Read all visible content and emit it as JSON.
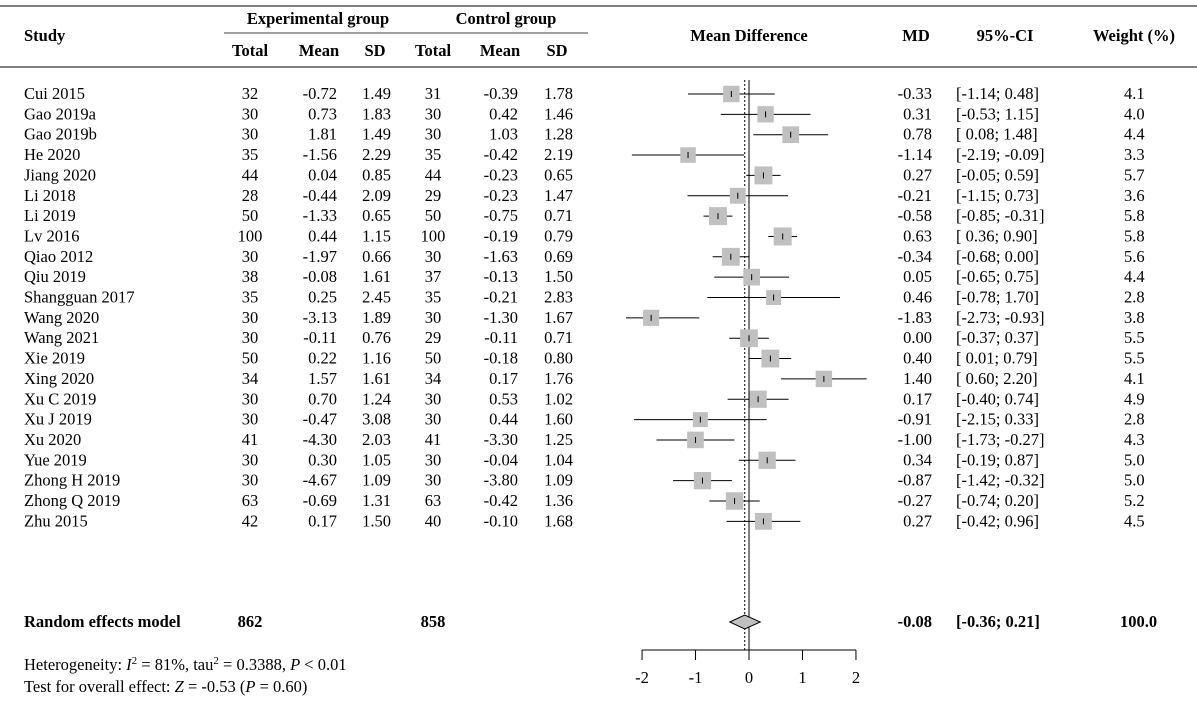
{
  "chart_data": {
    "type": "forest",
    "headers": {
      "study": "Study",
      "exp_group": "Experimental group",
      "ctrl_group": "Control group",
      "total": "Total",
      "mean": "Mean",
      "sd": "SD",
      "plot": "Mean Difference",
      "md": "MD",
      "ci": "95%-CI",
      "weight": "Weight (%)"
    },
    "studies": [
      {
        "study": "Cui 2015",
        "e_total": "32",
        "e_mean": "-0.72",
        "e_sd": "1.49",
        "c_total": "31",
        "c_mean": "-0.39",
        "c_sd": "1.78",
        "md": -0.33,
        "lo": -1.14,
        "hi": 0.48,
        "md_text": "-0.33",
        "ci_text": "[-1.14; 0.48]",
        "weight": 4.1,
        "weight_text": "4.1"
      },
      {
        "study": "Gao 2019a",
        "e_total": "30",
        "e_mean": "0.73",
        "e_sd": "1.83",
        "c_total": "30",
        "c_mean": "0.42",
        "c_sd": "1.46",
        "md": 0.31,
        "lo": -0.53,
        "hi": 1.15,
        "md_text": "0.31",
        "ci_text": "[-0.53; 1.15]",
        "weight": 4.0,
        "weight_text": "4.0"
      },
      {
        "study": "Gao 2019b",
        "e_total": "30",
        "e_mean": "1.81",
        "e_sd": "1.49",
        "c_total": "30",
        "c_mean": "1.03",
        "c_sd": "1.28",
        "md": 0.78,
        "lo": 0.08,
        "hi": 1.48,
        "md_text": "0.78",
        "ci_text": "[ 0.08; 1.48]",
        "weight": 4.4,
        "weight_text": "4.4"
      },
      {
        "study": "He 2020",
        "e_total": "35",
        "e_mean": "-1.56",
        "e_sd": "2.29",
        "c_total": "35",
        "c_mean": "-0.42",
        "c_sd": "2.19",
        "md": -1.14,
        "lo": -2.19,
        "hi": -0.09,
        "md_text": "-1.14",
        "ci_text": "[-2.19; -0.09]",
        "weight": 3.3,
        "weight_text": "3.3"
      },
      {
        "study": "Jiang 2020",
        "e_total": "44",
        "e_mean": "0.04",
        "e_sd": "0.85",
        "c_total": "44",
        "c_mean": "-0.23",
        "c_sd": "0.65",
        "md": 0.27,
        "lo": -0.05,
        "hi": 0.59,
        "md_text": "0.27",
        "ci_text": "[-0.05; 0.59]",
        "weight": 5.7,
        "weight_text": "5.7"
      },
      {
        "study": "Li 2018",
        "e_total": "28",
        "e_mean": "-0.44",
        "e_sd": "2.09",
        "c_total": "29",
        "c_mean": "-0.23",
        "c_sd": "1.47",
        "md": -0.21,
        "lo": -1.15,
        "hi": 0.73,
        "md_text": "-0.21",
        "ci_text": "[-1.15; 0.73]",
        "weight": 3.6,
        "weight_text": "3.6"
      },
      {
        "study": "Li 2019",
        "e_total": "50",
        "e_mean": "-1.33",
        "e_sd": "0.65",
        "c_total": "50",
        "c_mean": "-0.75",
        "c_sd": "0.71",
        "md": -0.58,
        "lo": -0.85,
        "hi": -0.31,
        "md_text": "-0.58",
        "ci_text": "[-0.85; -0.31]",
        "weight": 5.8,
        "weight_text": "5.8"
      },
      {
        "study": "Lv 2016",
        "e_total": "100",
        "e_mean": "0.44",
        "e_sd": "1.15",
        "c_total": "100",
        "c_mean": "-0.19",
        "c_sd": "0.79",
        "md": 0.63,
        "lo": 0.36,
        "hi": 0.9,
        "md_text": "0.63",
        "ci_text": "[ 0.36; 0.90]",
        "weight": 5.8,
        "weight_text": "5.8"
      },
      {
        "study": "Qiao 2012",
        "e_total": "30",
        "e_mean": "-1.97",
        "e_sd": "0.66",
        "c_total": "30",
        "c_mean": "-1.63",
        "c_sd": "0.69",
        "md": -0.34,
        "lo": -0.68,
        "hi": 0.0,
        "md_text": "-0.34",
        "ci_text": "[-0.68; 0.00]",
        "weight": 5.6,
        "weight_text": "5.6"
      },
      {
        "study": "Qiu 2019",
        "e_total": "38",
        "e_mean": "-0.08",
        "e_sd": "1.61",
        "c_total": "37",
        "c_mean": "-0.13",
        "c_sd": "1.50",
        "md": 0.05,
        "lo": -0.65,
        "hi": 0.75,
        "md_text": "0.05",
        "ci_text": "[-0.65; 0.75]",
        "weight": 4.4,
        "weight_text": "4.4"
      },
      {
        "study": "Shangguan 2017",
        "e_total": "35",
        "e_mean": "0.25",
        "e_sd": "2.45",
        "c_total": "35",
        "c_mean": "-0.21",
        "c_sd": "2.83",
        "md": 0.46,
        "lo": -0.78,
        "hi": 1.7,
        "md_text": "0.46",
        "ci_text": "[-0.78; 1.70]",
        "weight": 2.8,
        "weight_text": "2.8"
      },
      {
        "study": "Wang 2020",
        "e_total": "30",
        "e_mean": "-3.13",
        "e_sd": "1.89",
        "c_total": "30",
        "c_mean": "-1.30",
        "c_sd": "1.67",
        "md": -1.83,
        "lo": -2.73,
        "hi": -0.93,
        "md_text": "-1.83",
        "ci_text": "[-2.73; -0.93]",
        "weight": 3.8,
        "weight_text": "3.8"
      },
      {
        "study": "Wang 2021",
        "e_total": "30",
        "e_mean": "-0.11",
        "e_sd": "0.76",
        "c_total": "29",
        "c_mean": "-0.11",
        "c_sd": "0.71",
        "md": 0.0,
        "lo": -0.37,
        "hi": 0.37,
        "md_text": "0.00",
        "ci_text": "[-0.37; 0.37]",
        "weight": 5.5,
        "weight_text": "5.5"
      },
      {
        "study": "Xie 2019",
        "e_total": "50",
        "e_mean": "0.22",
        "e_sd": "1.16",
        "c_total": "50",
        "c_mean": "-0.18",
        "c_sd": "0.80",
        "md": 0.4,
        "lo": 0.01,
        "hi": 0.79,
        "md_text": "0.40",
        "ci_text": "[ 0.01; 0.79]",
        "weight": 5.5,
        "weight_text": "5.5"
      },
      {
        "study": "Xing 2020",
        "e_total": "34",
        "e_mean": "1.57",
        "e_sd": "1.61",
        "c_total": "34",
        "c_mean": "0.17",
        "c_sd": "1.76",
        "md": 1.4,
        "lo": 0.6,
        "hi": 2.2,
        "md_text": "1.40",
        "ci_text": "[ 0.60; 2.20]",
        "weight": 4.1,
        "weight_text": "4.1"
      },
      {
        "study": "Xu C 2019",
        "e_total": "30",
        "e_mean": "0.70",
        "e_sd": "1.24",
        "c_total": "30",
        "c_mean": "0.53",
        "c_sd": "1.02",
        "md": 0.17,
        "lo": -0.4,
        "hi": 0.74,
        "md_text": "0.17",
        "ci_text": "[-0.40; 0.74]",
        "weight": 4.9,
        "weight_text": "4.9"
      },
      {
        "study": "Xu J 2019",
        "e_total": "30",
        "e_mean": "-0.47",
        "e_sd": "3.08",
        "c_total": "30",
        "c_mean": "0.44",
        "c_sd": "1.60",
        "md": -0.91,
        "lo": -2.15,
        "hi": 0.33,
        "md_text": "-0.91",
        "ci_text": "[-2.15; 0.33]",
        "weight": 2.8,
        "weight_text": "2.8"
      },
      {
        "study": "Xu 2020",
        "e_total": "41",
        "e_mean": "-4.30",
        "e_sd": "2.03",
        "c_total": "41",
        "c_mean": "-3.30",
        "c_sd": "1.25",
        "md": -1.0,
        "lo": -1.73,
        "hi": -0.27,
        "md_text": "-1.00",
        "ci_text": "[-1.73; -0.27]",
        "weight": 4.3,
        "weight_text": "4.3"
      },
      {
        "study": "Yue 2019",
        "e_total": "30",
        "e_mean": "0.30",
        "e_sd": "1.05",
        "c_total": "30",
        "c_mean": "-0.04",
        "c_sd": "1.04",
        "md": 0.34,
        "lo": -0.19,
        "hi": 0.87,
        "md_text": "0.34",
        "ci_text": "[-0.19; 0.87]",
        "weight": 5.0,
        "weight_text": "5.0"
      },
      {
        "study": "Zhong H 2019",
        "e_total": "30",
        "e_mean": "-4.67",
        "e_sd": "1.09",
        "c_total": "30",
        "c_mean": "-3.80",
        "c_sd": "1.09",
        "md": -0.87,
        "lo": -1.42,
        "hi": -0.32,
        "md_text": "-0.87",
        "ci_text": "[-1.42; -0.32]",
        "weight": 5.0,
        "weight_text": "5.0"
      },
      {
        "study": "Zhong Q 2019",
        "e_total": "63",
        "e_mean": "-0.69",
        "e_sd": "1.31",
        "c_total": "63",
        "c_mean": "-0.42",
        "c_sd": "1.36",
        "md": -0.27,
        "lo": -0.74,
        "hi": 0.2,
        "md_text": "-0.27",
        "ci_text": "[-0.74; 0.20]",
        "weight": 5.2,
        "weight_text": "5.2"
      },
      {
        "study": "Zhu 2015",
        "e_total": "42",
        "e_mean": "0.17",
        "e_sd": "1.50",
        "c_total": "40",
        "c_mean": "-0.10",
        "c_sd": "1.68",
        "md": 0.27,
        "lo": -0.42,
        "hi": 0.96,
        "md_text": "0.27",
        "ci_text": "[-0.42; 0.96]",
        "weight": 4.5,
        "weight_text": "4.5"
      }
    ],
    "overall": {
      "label": "Random effects model",
      "e_total": "862",
      "c_total": "858",
      "md": -0.08,
      "lo": -0.36,
      "hi": 0.21,
      "md_text": "-0.08",
      "ci_text": "[-0.36; 0.21]",
      "weight_text": "100.0"
    },
    "heterogeneity": {
      "prefix": "Heterogeneity: ",
      "i2_symbol": "I",
      "i2_sup": "2",
      "i2_value": " = 81%, tau",
      "tau_sup": "2",
      "tau_value": " = 0.3388, ",
      "p_symbol": "P",
      "p_value": " < 0.01"
    },
    "overall_test": {
      "prefix": "Test for overall effect: ",
      "z_symbol": "Z",
      "z_value": " = -0.53 (",
      "p_symbol": "P",
      "p_value": " = 0.60)"
    },
    "xaxis": {
      "ticks": [
        -2,
        -1,
        0,
        1,
        2
      ],
      "tick_labels": [
        "-2",
        "-1",
        "0",
        "1",
        "2"
      ],
      "xlim": [
        -2.3,
        2.3
      ]
    },
    "colors": {
      "box": "#c0c0c0",
      "line": "#000000"
    }
  }
}
